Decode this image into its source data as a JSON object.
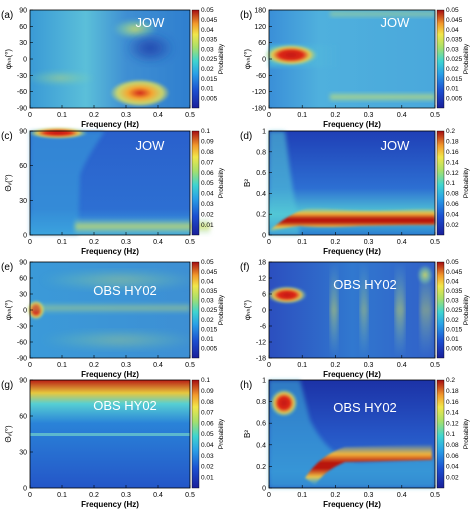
{
  "chart_data": [
    {
      "panel": "(a)",
      "type": "heatmap",
      "station": "JOW",
      "xlabel": "Frequency (Hz)",
      "ylabel": "φₕₕ(°)",
      "xlim": [
        0,
        0.5
      ],
      "ylim": [
        -90,
        90
      ],
      "xticks": [
        "0",
        "0.1",
        "0.2",
        "0.3",
        "0.4",
        "0.5"
      ],
      "yticks": [
        "90",
        "60",
        "30",
        "0",
        "-30",
        "-60",
        "-90"
      ],
      "colorbar": {
        "label": "Probability",
        "range": [
          0,
          0.05
        ],
        "ticks": [
          "0.05",
          "0.045",
          "0.04",
          "0.035",
          "0.03",
          "0.025",
          "0.02",
          "0.015",
          "0.01",
          "0.005"
        ]
      },
      "features": [
        {
          "x": 0.31,
          "y": -75,
          "value": 0.05
        }
      ]
    },
    {
      "panel": "(b)",
      "type": "heatmap",
      "station": "JOW",
      "xlabel": "Frequency (Hz)",
      "ylabel": "φₕₕ(°)",
      "xlim": [
        0,
        0.5
      ],
      "ylim": [
        -180,
        180
      ],
      "xticks": [
        "0",
        "0.1",
        "0.2",
        "0.3",
        "0.4",
        "0.5"
      ],
      "yticks": [
        "180",
        "120",
        "60",
        "0",
        "-60",
        "-120",
        "-180"
      ],
      "colorbar": {
        "label": "Probability",
        "range": [
          0,
          0.05
        ],
        "ticks": [
          "0.05",
          "0.045",
          "0.04",
          "0.035",
          "0.03",
          "0.025",
          "0.02",
          "0.015",
          "0.01",
          "0.005"
        ]
      },
      "features": [
        {
          "x": 0.06,
          "y": 5,
          "value": 0.05
        }
      ]
    },
    {
      "panel": "(c)",
      "type": "heatmap",
      "station": "JOW",
      "xlabel": "Frequency (Hz)",
      "ylabel": "Θᵥ(°)",
      "xlim": [
        0,
        0.5
      ],
      "ylim": [
        0,
        90
      ],
      "xticks": [
        "0",
        "0.1",
        "0.2",
        "0.3",
        "0.4",
        "0.5"
      ],
      "yticks": [
        "90",
        "60",
        "30",
        "0"
      ],
      "colorbar": {
        "label": "Probability",
        "range": [
          0,
          0.1
        ],
        "ticks": [
          "0.1",
          "0.09",
          "0.08",
          "0.07",
          "0.06",
          "0.05",
          "0.04",
          "0.03",
          "0.02",
          "0.01"
        ]
      },
      "features": [
        {
          "x": 0.05,
          "y": 87,
          "value": 0.1
        }
      ]
    },
    {
      "panel": "(d)",
      "type": "heatmap",
      "station": "JOW",
      "xlabel": "Frequency (Hz)",
      "ylabel": "B²",
      "xlim": [
        0,
        0.5
      ],
      "ylim": [
        0,
        1
      ],
      "xticks": [
        "0",
        "0.1",
        "0.2",
        "0.3",
        "0.4",
        "0.5"
      ],
      "yticks": [
        "1",
        "0.8",
        "0.6",
        "0.4",
        "0.2",
        "0"
      ],
      "colorbar": {
        "label": "Probability",
        "range": [
          0,
          0.2
        ],
        "ticks": [
          "0.2",
          "0.18",
          "0.16",
          "0.14",
          "0.12",
          "0.1",
          "0.08",
          "0.06",
          "0.04",
          "0.02"
        ]
      },
      "features": [
        {
          "x": 0.25,
          "y": 0.16,
          "value": 0.2
        }
      ]
    },
    {
      "panel": "(e)",
      "type": "heatmap",
      "station": "OBS HY02",
      "xlabel": "Frequency (Hz)",
      "ylabel": "φₕₕ(°)",
      "xlim": [
        0,
        0.5
      ],
      "ylim": [
        -90,
        90
      ],
      "xticks": [
        "0",
        "0.1",
        "0.2",
        "0.3",
        "0.4",
        "0.5"
      ],
      "yticks": [
        "90",
        "60",
        "30",
        "0",
        "-30",
        "-60",
        "-90"
      ],
      "colorbar": {
        "label": "Probability",
        "range": [
          0,
          0.05
        ],
        "ticks": [
          "0.05",
          "0.045",
          "0.04",
          "0.035",
          "0.03",
          "0.025",
          "0.02",
          "0.015",
          "0.01",
          "0.005"
        ]
      },
      "features": [
        {
          "x": 0.015,
          "y": 0,
          "value": 0.05
        }
      ]
    },
    {
      "panel": "(f)",
      "type": "heatmap",
      "station": "OBS HY02",
      "xlabel": "Frequency (Hz)",
      "ylabel": "φₕₕ(°)",
      "xlim": [
        0,
        0.5
      ],
      "ylim": [
        -18,
        18
      ],
      "xticks": [
        "0",
        "0.1",
        "0.2",
        "0.3",
        "0.4",
        "0.5"
      ],
      "yticks": [
        "18",
        "12",
        "6",
        "0",
        "-6",
        "-12",
        "-18"
      ],
      "colorbar": {
        "label": "Probability",
        "range": [
          0,
          0.05
        ],
        "ticks": [
          "0.05",
          "0.045",
          "0.04",
          "0.035",
          "0.03",
          "0.025",
          "0.02",
          "0.015",
          "0.01",
          "0.005"
        ]
      },
      "features": [
        {
          "x": 0.05,
          "y": 4,
          "value": 0.05
        }
      ]
    },
    {
      "panel": "(g)",
      "type": "heatmap",
      "station": "OBS HY02",
      "xlabel": "Frequency (Hz)",
      "ylabel": "Θᵥ(°)",
      "xlim": [
        0,
        0.5
      ],
      "ylim": [
        0,
        90
      ],
      "xticks": [
        "0",
        "0.1",
        "0.2",
        "0.3",
        "0.4",
        "0.5"
      ],
      "yticks": [
        "90",
        "60",
        "30",
        "0"
      ],
      "colorbar": {
        "label": "Probability",
        "range": [
          0,
          0.1
        ],
        "ticks": [
          "0.1",
          "0.09",
          "0.08",
          "0.07",
          "0.06",
          "0.05",
          "0.04",
          "0.03",
          "0.02",
          "0.01"
        ]
      },
      "features": [
        {
          "x": 0.25,
          "y": 88,
          "value": 0.1
        }
      ]
    },
    {
      "panel": "(h)",
      "type": "heatmap",
      "station": "OBS HY02",
      "xlabel": "Frequency (Hz)",
      "ylabel": "B²",
      "xlim": [
        0,
        0.5
      ],
      "ylim": [
        0,
        1
      ],
      "xticks": [
        "0",
        "0.1",
        "0.2",
        "0.3",
        "0.4",
        "0.5"
      ],
      "yticks": [
        "1",
        "0.8",
        "0.6",
        "0.4",
        "0.2",
        "0"
      ],
      "colorbar": {
        "label": "Probability",
        "range": [
          0,
          0.2
        ],
        "ticks": [
          "0.2",
          "0.18",
          "0.16",
          "0.14",
          "0.12",
          "0.1",
          "0.08",
          "0.06",
          "0.04",
          "0.02"
        ]
      },
      "features": [
        {
          "x": 0.04,
          "y": 0.78,
          "value": 0.2
        },
        {
          "x": 0.3,
          "y": 0.3,
          "value": 0.2
        }
      ]
    }
  ],
  "colors": {
    "low": "#1a2f9e",
    "mid": "#27c6c8",
    "high": "#a60d12"
  }
}
